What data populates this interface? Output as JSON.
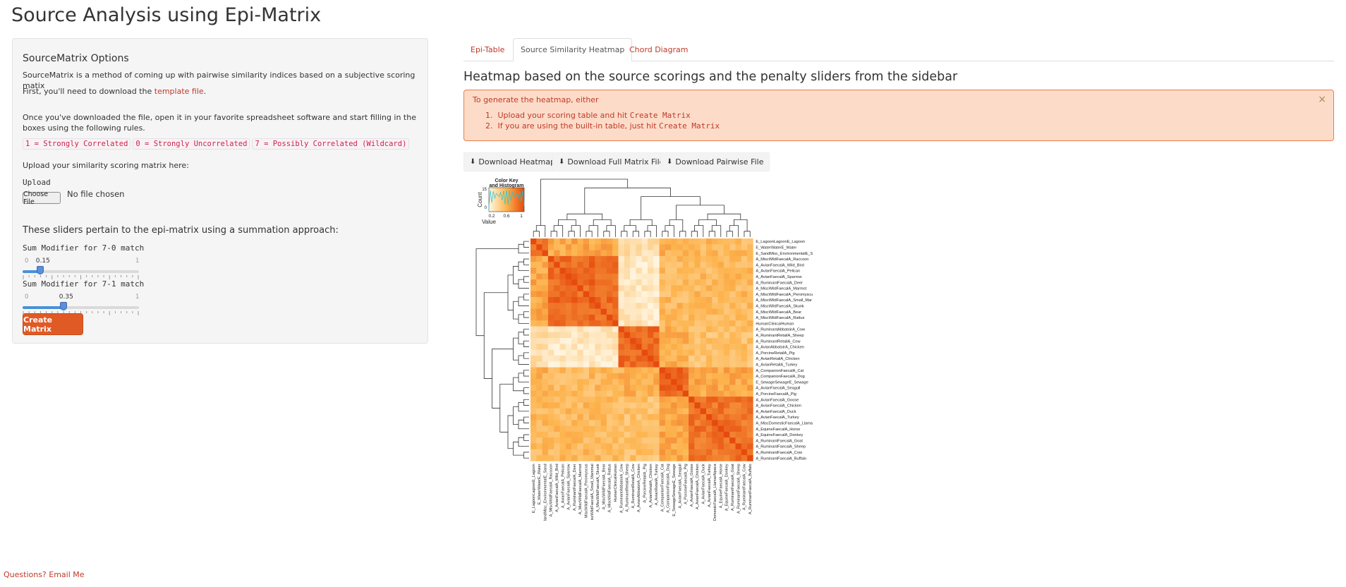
{
  "page": {
    "title": "Source Analysis using Epi-Matrix"
  },
  "sidebar": {
    "title": "SourceMatrix Options",
    "intro": "SourceMatrix is a method of coming up with pairwise similarity indices based on a subjective scoring matix",
    "download_prefix": "First, you'll need to download the ",
    "template_link": "template file",
    "download_suffix": ".",
    "instructions": "Once you've downloaded the file, open it in your favorite spreadsheet software and start filling in the boxes using the following rules.",
    "rules": [
      "1 = Strongly Correlated",
      "0 = Strongly Uncorrelated",
      "7 = Possibly Correlated (Wildcard)"
    ],
    "upload_prompt": "Upload your similarity scoring matrix here:",
    "upload_label": "Upload",
    "choose_file": "Choose File",
    "no_file": "No file chosen",
    "sliders_heading": "These sliders pertain to the epi-matrix using a summation approach:",
    "slider1": {
      "label": "Sum Modifier for 7-0 match",
      "min": "0",
      "max": "1",
      "value_text": "0.15",
      "value": 0.15
    },
    "slider2": {
      "label": "Sum Modifier for 7-1 match",
      "min": "0",
      "max": "1",
      "value_text": "0.35",
      "value": 0.35
    },
    "create_button": "Create Matrix"
  },
  "tabs": [
    {
      "label": "Epi-Table",
      "active": false
    },
    {
      "label": "Source Similarity Heatmap",
      "active": true
    },
    {
      "label": "Chord Diagram",
      "active": false
    }
  ],
  "main": {
    "heading": "Heatmap based on the source scorings and the penalty sliders from the sidebar",
    "alert": {
      "intro": "To generate the heatmap, either",
      "item1_text": "Upload your scoring table and hit ",
      "item1_code": "Create Matrix",
      "item2_text": "If you are using the built-in table, just hit ",
      "item2_code": "Create Matrix",
      "close": "×"
    },
    "buttons": {
      "download_heatmap": "Download Heatmap",
      "download_full": "Download Full Matrix File",
      "download_pairwise": "Download Pairwise File"
    }
  },
  "chart_data": {
    "type": "heatmap",
    "color_key": {
      "title_line1": "Color Key",
      "title_line2": "and Histogram",
      "xlabel": "Value",
      "ylabel": "Count",
      "ticks": [
        "0.2",
        "0.6",
        "1"
      ],
      "y_ticks": [
        "0",
        "15"
      ]
    },
    "labels": [
      "E_LagoonLagoonE_Lagoon",
      "E_WaterWaterE_Water",
      "E_SandMisc_EnvironmentalE_S",
      "A_MiscWildFaecalA_Raccoon",
      "A_AvianFaecalA_Wild_Bird",
      "A_AvianFaecalA_Pelican",
      "A_AvianFaecalA_Sparrow",
      "A_RuminantFaecalA_Deer",
      "A_MiscWildFaecalA_Marmot",
      "A_MiscWildFaecalA_Peromyscu",
      "A_MiscWildFaecalA_Small_Mar",
      "A_MiscWildFaecalA_Skunk",
      "A_MiscWildFaecalA_Bear",
      "A_MiscWildFaecalA_Rattus",
      "HumanClinicalHuman",
      "A_RuminantAbbatoirA_Cow",
      "A_RuminantRetailA_Sheep",
      "A_RuminantRetailA_Cow",
      "A_AvianAbbatoirA_Chicken",
      "A_PorcineRetailA_Pig",
      "A_AvianRetailA_Chicken",
      "A_AvianRetailA_Turkey",
      "A_CompanionFaecalA_Cat",
      "A_CompanionFaecalA_Dog",
      "E_SewageSewageE_Sewage",
      "A_AvianFaecalA_Seagull",
      "A_PorcineFaecalA_Pig",
      "A_AvianFaecalA_Goose",
      "A_AvianFaecalA_Chicken",
      "A_AvianFaecalA_Duck",
      "A_AvianFaecalA_Turkey",
      "A_MiscDomesticFaecalA_Llama",
      "A_EquineFaecalA_Horse",
      "A_EquineFaecalA_Donkey",
      "A_RuminantFaecalA_Goat",
      "A_RuminantFaecalA_Sheep",
      "A_RuminantFaecalA_Cow",
      "A_RuminantFaecalA_Buffalo"
    ],
    "column_labels": [
      "E_LagoonLagoonE_Lagoon",
      "E_WaterWaterE_Water",
      "landMisc_EnvironmentalE_Sand",
      "A_MiscWildFaecalA_Raccoon",
      "A_AvianFaecalA_Wild_Bird",
      "A_AvianFaecalA_Pelican",
      "A_AvianFaecalA_Sparrow",
      "A_RuminantFaecalA_Deer",
      "A_MiscWildFaecalA_Marmot",
      "MiscWildFaecalA_Peromyscus",
      "iscWildFaecalA_Small_Mammal",
      "A_MiscWildFaecalA_Skunk",
      "A_MiscWildFaecalA_Bear",
      "A_MiscWildFaecalA_Rattus",
      "HumanClinicalHuman",
      "A_RuminantAbbatoirA_Cow",
      "A_RuminantRetailA_Sheep",
      "A_RuminantRetailA_Cow",
      "A_AvianAbbatoirA_Chicken",
      "A_PorcineRetailA_Pig",
      "A_AvianRetailA_Chicken",
      "A_AvianRetailA_Turkey",
      "A_CompanionFaecalA_Cat",
      "A_CompanionFaecalA_Dog",
      "E_SewageSewageE_Sewage",
      "A_AvianFaecalA_Seagull",
      "A_PorcineFaecalA_Pig",
      "A_AvianFaecalA_Goose",
      "A_AvianFaecalA_Chicken",
      "A_AvianFaecalA_Duck",
      "A_AvianFaecalA_Turkey",
      "DomesticFaecalA_Llama/Alpaca",
      "A_EquineFaecalA_Horse",
      "A_EquineFaecalA_Donkey",
      "A_RuminantFaecalA_Goat",
      "A_RuminantFaecalA_Sheep",
      "A_RuminantFaecalA_Cow",
      "A_RuminantFaecalA_Buffalo"
    ],
    "clusters": [
      [
        0,
        2
      ],
      [
        3,
        14
      ],
      [
        15,
        21
      ],
      [
        22,
        26
      ],
      [
        27,
        37
      ]
    ],
    "block_values": [
      [
        0.85,
        0.55,
        0.2,
        0.5,
        0.45
      ],
      [
        0.55,
        0.85,
        0.12,
        0.45,
        0.45
      ],
      [
        0.2,
        0.12,
        0.85,
        0.5,
        0.4
      ],
      [
        0.5,
        0.45,
        0.5,
        0.85,
        0.55
      ],
      [
        0.45,
        0.45,
        0.4,
        0.55,
        0.8
      ]
    ],
    "colors": {
      "low": "#fff8e6",
      "mid": "#fdb44e",
      "high": "#e64a0e"
    }
  },
  "footer": {
    "link": "Questions? Email Me"
  }
}
